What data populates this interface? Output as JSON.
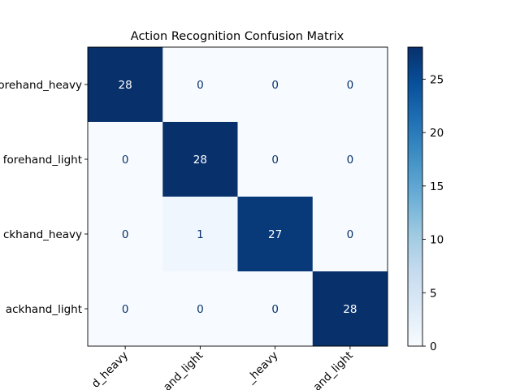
{
  "chart_data": {
    "type": "heatmap",
    "title": "Action Recognition Confusion Matrix",
    "xlabel": "",
    "ylabel": "",
    "rows": [
      "forehand_heavy",
      "forehand_light",
      "backhand_heavy",
      "backhand_light"
    ],
    "columns": [
      "forehand_heavy",
      "forehand_light",
      "backhand_heavy",
      "backhand_light"
    ],
    "row_labels_visible": [
      "orehand_heavy",
      "forehand_light",
      "ckhand_heavy",
      "ackhand_light"
    ],
    "column_labels_visible": [
      "d_heavy",
      "and_light",
      "_heavy",
      "and_light"
    ],
    "values": [
      [
        28,
        0,
        0,
        0
      ],
      [
        0,
        28,
        0,
        0
      ],
      [
        0,
        1,
        27,
        0
      ],
      [
        0,
        0,
        0,
        28
      ]
    ],
    "colormap": "Blues",
    "colorbar": {
      "range": [
        0,
        28
      ],
      "ticks": [
        0,
        5,
        10,
        15,
        20,
        25
      ]
    },
    "grid": false
  }
}
